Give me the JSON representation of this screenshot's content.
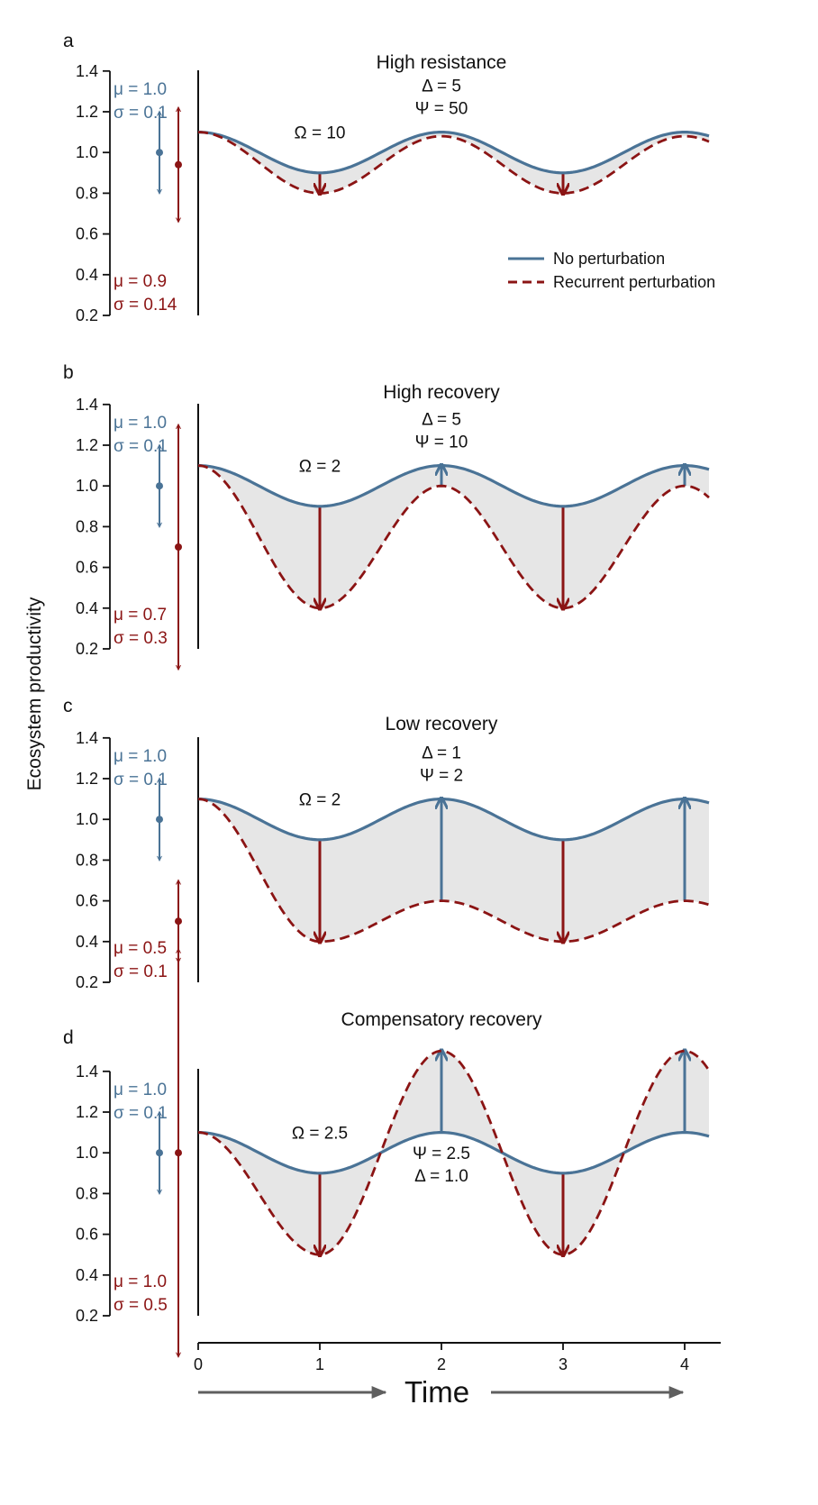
{
  "colors": {
    "blue": "#4a7396",
    "red": "#8b1414",
    "fill": "#e6e6e6",
    "axis": "#111111",
    "time_arrow": "#5f5f5f"
  },
  "chart_data": {
    "type": "line",
    "ylabel": "Ecosystem productivity",
    "xlabel": "Time",
    "xlim": [
      0,
      4.2
    ],
    "ylim": [
      0.2,
      1.4
    ],
    "x_ticks": [
      0,
      1,
      2,
      3,
      4
    ],
    "y_ticks": [
      0.2,
      0.4,
      0.6,
      0.8,
      1.0,
      1.2,
      1.4
    ],
    "y_tick_labels": [
      "0.2",
      "0.4",
      "0.6",
      "0.8",
      "1.0",
      "1.2",
      "1.4"
    ],
    "legend": {
      "placement": "right, inside panel a",
      "entries": [
        {
          "label": "No perturbation",
          "style": "solid",
          "color": "#4a7396"
        },
        {
          "label": "Recurrent perturbation",
          "style": "dashed",
          "color": "#8b1414"
        }
      ]
    },
    "panels": [
      {
        "letter": "a",
        "title": "High resistance",
        "series": [
          {
            "name": "No perturbation",
            "mean": 1.0,
            "amplitude": 0.1,
            "start": 1.1
          },
          {
            "name": "Recurrent perturbation",
            "trough": 0.8,
            "peak": 1.08,
            "start": 1.1
          }
        ],
        "stats_none": {
          "mu": "μ = 1.0",
          "sigma": "σ = 0.1",
          "mean": 1.0,
          "sd": 0.1
        },
        "stats_pert": {
          "mu": "μ = 0.9",
          "sigma": "σ = 0.14",
          "mean": 0.94,
          "sd": 0.14
        },
        "params": [
          {
            "text": "Ω = 10",
            "x": 1.0,
            "y": 1.07
          },
          {
            "text": "Δ = 5",
            "x": 2.0,
            "y": 1.3
          },
          {
            "text": "Ψ = 50",
            "x": 2.0,
            "y": 1.19
          }
        ],
        "arrows": [
          {
            "x": 1,
            "from": 0.9,
            "to": 0.8,
            "color": "red"
          },
          {
            "x": 3,
            "from": 0.9,
            "to": 0.8,
            "color": "red"
          }
        ]
      },
      {
        "letter": "b",
        "title": "High recovery",
        "series": [
          {
            "name": "No perturbation",
            "mean": 1.0,
            "amplitude": 0.1,
            "start": 1.1
          },
          {
            "name": "Recurrent perturbation",
            "trough": 0.4,
            "peak": 1.0,
            "start": 1.1
          }
        ],
        "stats_none": {
          "mu": "μ = 1.0",
          "sigma": "σ = 0.1",
          "mean": 1.0,
          "sd": 0.1
        },
        "stats_pert": {
          "mu": "μ = 0.7",
          "sigma": "σ = 0.3",
          "mean": 0.7,
          "sd": 0.3
        },
        "params": [
          {
            "text": "Ω = 2",
            "x": 1.0,
            "y": 1.07
          },
          {
            "text": "Δ = 5",
            "x": 2.0,
            "y": 1.3
          },
          {
            "text": "Ψ = 10",
            "x": 2.0,
            "y": 1.19
          }
        ],
        "arrows": [
          {
            "x": 1,
            "from": 0.9,
            "to": 0.4,
            "color": "red"
          },
          {
            "x": 2,
            "from": 1.0,
            "to": 1.1,
            "color": "blue"
          },
          {
            "x": 3,
            "from": 0.9,
            "to": 0.4,
            "color": "red"
          },
          {
            "x": 4,
            "from": 1.0,
            "to": 1.1,
            "color": "blue"
          }
        ]
      },
      {
        "letter": "c",
        "title": "Low recovery",
        "series": [
          {
            "name": "No perturbation",
            "mean": 1.0,
            "amplitude": 0.1,
            "start": 1.1
          },
          {
            "name": "Recurrent perturbation",
            "trough": 0.4,
            "peak": 0.6,
            "start": 1.1
          }
        ],
        "stats_none": {
          "mu": "μ = 1.0",
          "sigma": "σ = 0.1",
          "mean": 1.0,
          "sd": 0.1
        },
        "stats_pert": {
          "mu": "μ = 0.5",
          "sigma": "σ = 0.1",
          "mean": 0.5,
          "sd": 0.1
        },
        "params": [
          {
            "text": "Ω = 2",
            "x": 1.0,
            "y": 1.07
          },
          {
            "text": "Δ = 1",
            "x": 2.0,
            "y": 1.3
          },
          {
            "text": "Ψ = 2",
            "x": 2.0,
            "y": 1.19
          }
        ],
        "arrows": [
          {
            "x": 1,
            "from": 0.9,
            "to": 0.4,
            "color": "red"
          },
          {
            "x": 2,
            "from": 0.6,
            "to": 1.1,
            "color": "blue"
          },
          {
            "x": 3,
            "from": 0.9,
            "to": 0.4,
            "color": "red"
          },
          {
            "x": 4,
            "from": 0.6,
            "to": 1.1,
            "color": "blue"
          }
        ]
      },
      {
        "letter": "d",
        "title": "Compensatory recovery",
        "series": [
          {
            "name": "No perturbation",
            "mean": 1.0,
            "amplitude": 0.1,
            "start": 1.1
          },
          {
            "name": "Recurrent perturbation",
            "trough": 0.5,
            "peak": 1.5,
            "start": 1.1
          }
        ],
        "stats_none": {
          "mu": "μ = 1.0",
          "sigma": "σ = 0.1",
          "mean": 1.0,
          "sd": 0.1
        },
        "stats_pert": {
          "mu": "μ = 1.0",
          "sigma": "σ = 0.5",
          "mean": 1.0,
          "sd": 0.5
        },
        "params": [
          {
            "text": "Ω = 2.5",
            "x": 1.0,
            "y": 1.07
          },
          {
            "text": "Ψ = 2.5",
            "x": 2.0,
            "y": 0.97
          },
          {
            "text": "Δ = 1.0",
            "x": 2.0,
            "y": 0.86
          }
        ],
        "arrows": [
          {
            "x": 1,
            "from": 0.9,
            "to": 0.5,
            "color": "red"
          },
          {
            "x": 2,
            "from": 1.1,
            "to": 1.5,
            "color": "blue"
          },
          {
            "x": 3,
            "from": 0.9,
            "to": 0.5,
            "color": "red"
          },
          {
            "x": 4,
            "from": 1.1,
            "to": 1.5,
            "color": "blue"
          }
        ]
      }
    ]
  }
}
